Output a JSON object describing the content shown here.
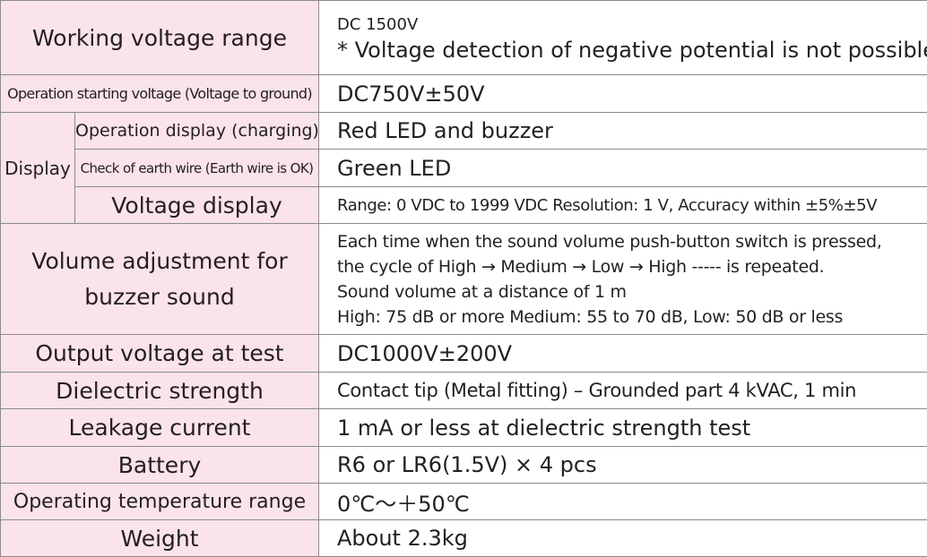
{
  "table": {
    "rows": [
      {
        "label": "Working voltage range",
        "value": [
          "DC 1500V",
          "* Voltage detection of negative potential is not possible."
        ]
      },
      {
        "label": "Operation starting voltage (Voltage to ground)",
        "value": "DC750V±50V"
      },
      {
        "label": "Display",
        "items": [
          {
            "label": "Operation display (charging)",
            "value": "Red LED and buzzer"
          },
          {
            "label": "Check of earth wire (Earth wire is OK)",
            "value": "Green LED"
          },
          {
            "label": "Voltage display",
            "value": "Range: 0 VDC to 1999 VDC Resolution: 1 V, Accuracy within ±5%±5V"
          }
        ]
      },
      {
        "label": [
          "Volume adjustment for",
          "buzzer sound"
        ],
        "value": [
          "Each time when the sound volume push-button switch is pressed,",
          "the cycle of High → Medium → Low → High ----- is repeated.",
          "Sound volume at a distance of 1 m",
          "High: 75 dB or more Medium: 55 to 70 dB, Low: 50 dB or less"
        ]
      },
      {
        "label": "Output voltage at test",
        "value": "DC1000V±200V"
      },
      {
        "label": "Dielectric strength",
        "value": "Contact tip (Metal fitting) – Grounded part 4 kVAC, 1 min"
      },
      {
        "label": "Leakage current",
        "value": "1 mA or less at dielectric strength test"
      },
      {
        "label": "Battery",
        "value": "R6 or LR6(1.5V) × 4 pcs"
      },
      {
        "label": "Operating temperature range",
        "value": "0℃～＋50℃"
      },
      {
        "label": "Weight",
        "value": "About 2.3kg"
      }
    ]
  }
}
